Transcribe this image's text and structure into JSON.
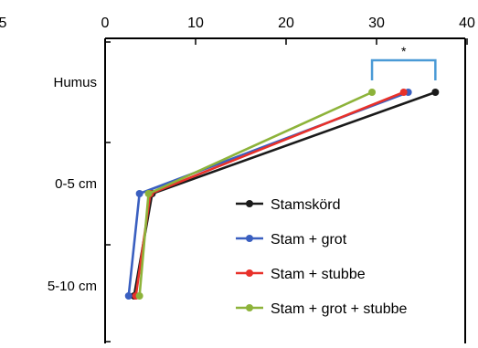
{
  "chart_data": {
    "type": "line",
    "orientation": "horizontal-values",
    "title": "",
    "xlabel": "",
    "ylabel": "",
    "xlim": [
      0,
      40
    ],
    "x_ticks": [
      "0",
      "10",
      "20",
      "30",
      "40"
    ],
    "clipped_tick_label": "5",
    "categories": [
      "Humus",
      "0-5 cm",
      "5-10 cm"
    ],
    "grid": false,
    "legend_position": "bottom-right",
    "series": [
      {
        "name": "Stamskörd",
        "color": "#1a1a1a",
        "values": [
          36.5,
          5.2,
          3.2
        ]
      },
      {
        "name": "Stam + grot",
        "color": "#3a5fc0",
        "values": [
          33.5,
          3.8,
          2.6
        ]
      },
      {
        "name": "Stam + stubbe",
        "color": "#e8312a",
        "values": [
          33.0,
          5.0,
          3.4
        ]
      },
      {
        "name": "Stam + grot + stubbe",
        "color": "#8db33a",
        "values": [
          29.5,
          4.8,
          3.8
        ]
      }
    ],
    "annotation": {
      "text": "*",
      "bracket_between": [
        "Stam + grot + stubbe",
        "Stamskörd"
      ],
      "bracket_x": [
        29.5,
        36.5
      ],
      "bracket_color": "#4a9ad6"
    }
  }
}
